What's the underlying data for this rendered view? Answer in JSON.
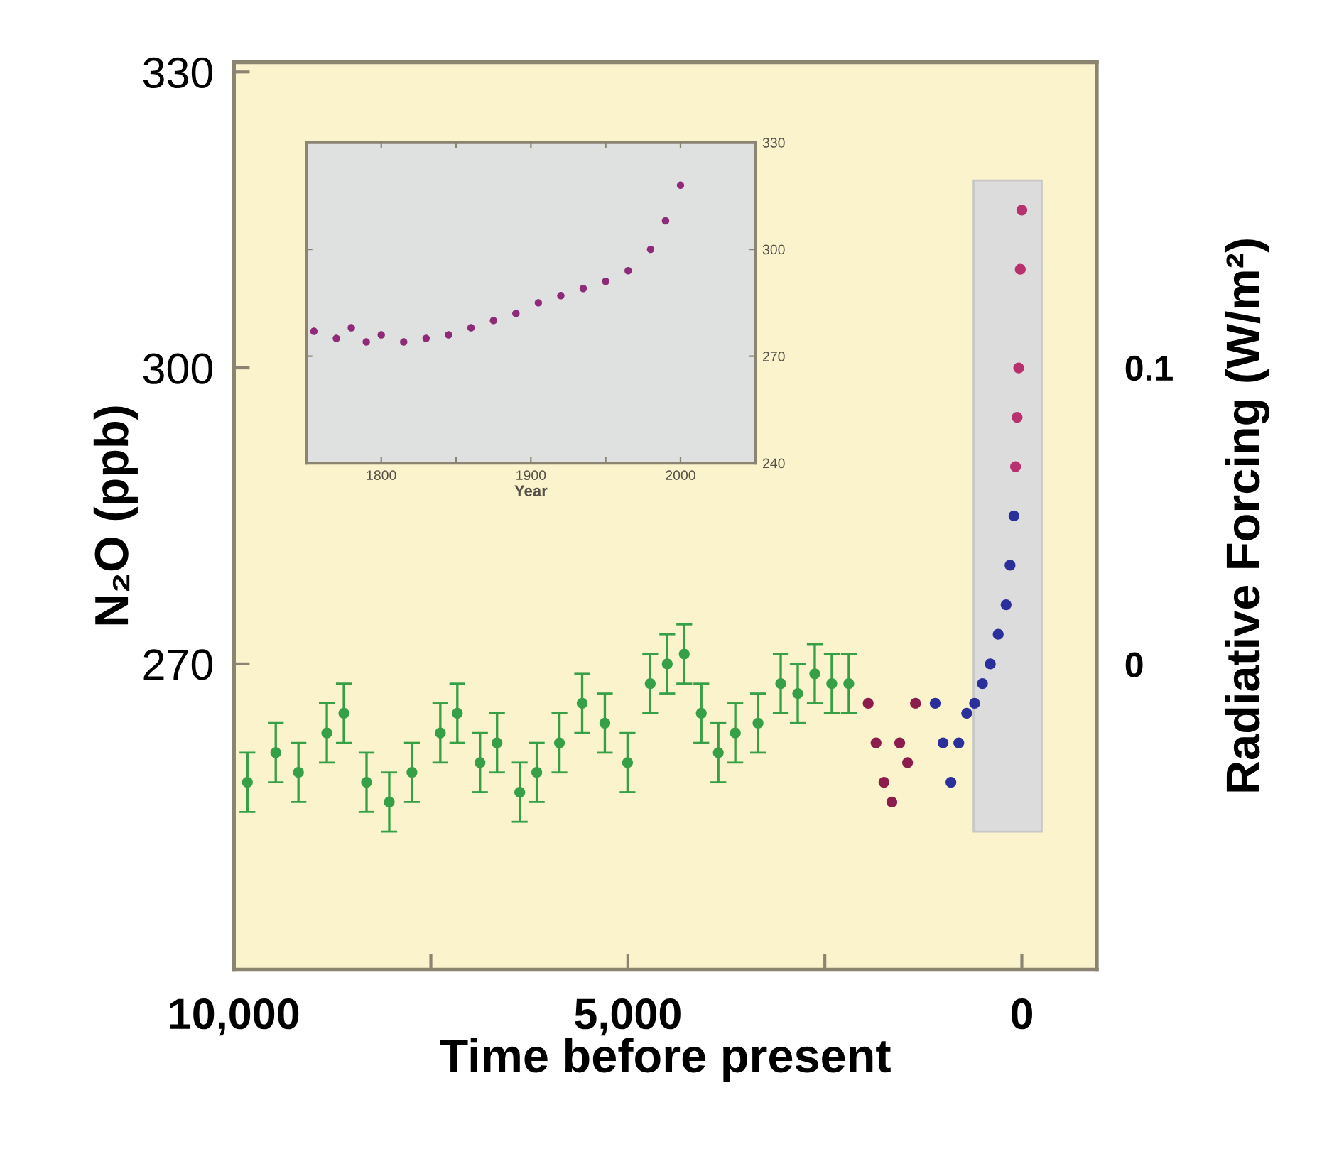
{
  "chart_data": [
    {
      "type": "scatter",
      "xlabel": "Time before present",
      "ylabel": "N₂O (ppb)",
      "y2label": "Radiative Forcing (W/m²)",
      "xlim": [
        10000,
        -950
      ],
      "xticks": [
        {
          "value": 10000,
          "label": "10,000"
        },
        {
          "value": 7500,
          "label": null
        },
        {
          "value": 5000,
          "label": "5,000"
        },
        {
          "value": 2500,
          "label": null
        },
        0
      ],
      "ylim": [
        239,
        331
      ],
      "yticks": [
        270,
        300,
        330
      ],
      "y2lim": [
        -0.103,
        0.203
      ],
      "y2ticks": [
        0,
        0.1
      ],
      "marker": "circle",
      "grid": false,
      "series": [
        {
          "color": "#35a046",
          "x": [
            9828,
            9468,
            9180,
            8820,
            8604,
            8316,
            8028,
            7740,
            7380,
            7164,
            6876,
            6660,
            6372,
            6156,
            5868,
            5580,
            5292,
            5004,
            4716,
            4500,
            4284,
            4068,
            3852,
            3636,
            3348,
            3060,
            2844,
            2628,
            2412,
            2196
          ],
          "values": [
            258,
            261,
            259,
            263,
            265,
            258,
            256,
            259,
            263,
            265,
            260,
            262,
            257,
            259,
            262,
            266,
            264,
            260,
            268,
            270,
            271,
            265,
            261,
            263,
            264,
            268,
            267,
            269,
            268,
            268
          ],
          "errors": [
            3,
            3,
            3,
            3,
            3,
            3,
            3,
            3,
            3,
            3,
            3,
            3,
            3,
            3,
            3,
            3,
            3,
            3,
            3,
            3,
            3,
            3,
            3,
            3,
            3,
            3,
            3,
            3,
            3,
            3
          ]
        },
        {
          "color": "#8b1c4c",
          "x": [
            1950,
            1850,
            1750,
            1650,
            1550,
            1450,
            1350
          ],
          "values": [
            266,
            262,
            258,
            256,
            262,
            260,
            266
          ]
        },
        {
          "color": "#2b2f9c",
          "x": [
            1100,
            1000,
            900,
            800,
            700,
            600,
            500,
            400,
            300,
            200,
            150,
            100
          ],
          "values": [
            266,
            262,
            258,
            262,
            265,
            266,
            268,
            270,
            273,
            276,
            280,
            285
          ]
        },
        {
          "color": "#b8306e",
          "x": [
            80,
            60,
            40,
            20,
            0
          ],
          "values": [
            290,
            295,
            300,
            310,
            316
          ]
        }
      ]
    },
    {
      "type": "scatter",
      "xlabel": "Year",
      "xlim": [
        1750,
        2050
      ],
      "xticks": [
        1800,
        {
          "value": 1850,
          "label": null
        },
        1900,
        {
          "value": 1950,
          "label": null
        },
        2000
      ],
      "ylim": [
        240,
        330
      ],
      "yticks": [
        240,
        270,
        300,
        330
      ],
      "marker": "circle",
      "grid": false,
      "series": [
        {
          "color": "#8e2a78",
          "x": [
            1755,
            1770,
            1780,
            1790,
            1800,
            1815,
            1830,
            1845,
            1860,
            1875,
            1890,
            1905,
            1920,
            1935,
            1950,
            1965,
            1980,
            1990,
            2000
          ],
          "values": [
            277,
            275,
            278,
            274,
            276,
            274,
            275,
            276,
            278,
            280,
            282,
            285,
            287,
            289,
            291,
            294,
            300,
            308,
            318
          ]
        }
      ]
    }
  ]
}
